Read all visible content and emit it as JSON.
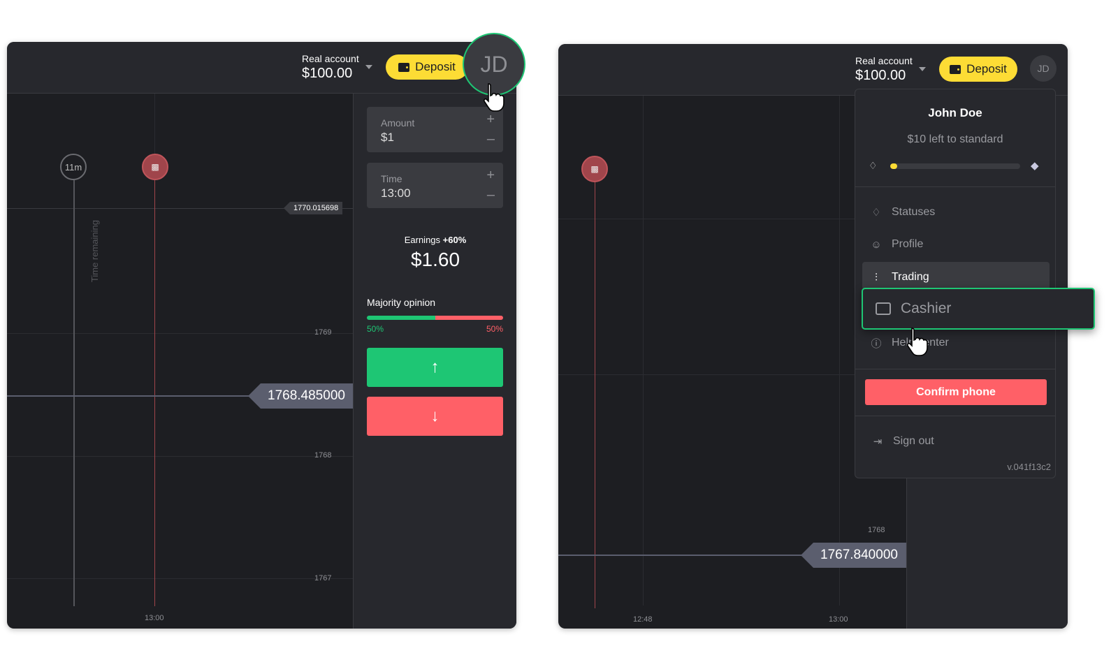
{
  "left": {
    "header": {
      "account_label": "Real account",
      "balance": "$100.00",
      "deposit_label": "Deposit",
      "avatar_initials": "JD"
    },
    "chart": {
      "timer_label": "11m",
      "time_remaining_label": "Time remaining",
      "line_price": "1770.015698",
      "current_price": "1768.485000",
      "y_ticks": [
        "1769",
        "1768",
        "1767"
      ],
      "x_ticks": [
        "13:00"
      ]
    },
    "trade": {
      "amount_label": "Amount",
      "amount_value": "$1",
      "time_label": "Time",
      "time_value": "13:00",
      "earnings_label": "Earnings",
      "earnings_pct": "+60%",
      "earnings_value": "$1.60",
      "majority_label": "Majority opinion",
      "up_pct_label": "50%",
      "down_pct_label": "50%",
      "up_pct": 50,
      "down_pct": 50,
      "up_color": "#1ec674",
      "down_color": "#ff6067"
    }
  },
  "right": {
    "header": {
      "account_label": "Real account",
      "balance": "$100.00",
      "deposit_label": "Deposit",
      "avatar_initials": "JD"
    },
    "chart": {
      "current_price": "1767.840000",
      "y_ticks": [
        "1768"
      ],
      "x_ticks": [
        "12:48",
        "13:00"
      ]
    },
    "menu": {
      "user_name": "John Doe",
      "status_progress_text": "$10 left to standard",
      "status_progress": 0.03,
      "items": [
        {
          "label": "Statuses",
          "icon": "diamond-outline-icon"
        },
        {
          "label": "Profile",
          "icon": "user-icon"
        },
        {
          "label": "Trading",
          "icon": "candles-icon"
        },
        {
          "label": "Cashier",
          "icon": "wallet-icon"
        },
        {
          "label": "Help center",
          "icon": "info-icon"
        }
      ],
      "confirm_phone_label": "Confirm phone",
      "sign_out_label": "Sign out",
      "version": "v.041f13c2"
    }
  },
  "colors": {
    "accent": "#fddc35",
    "highlight": "#1ec674",
    "danger": "#ff6067"
  }
}
